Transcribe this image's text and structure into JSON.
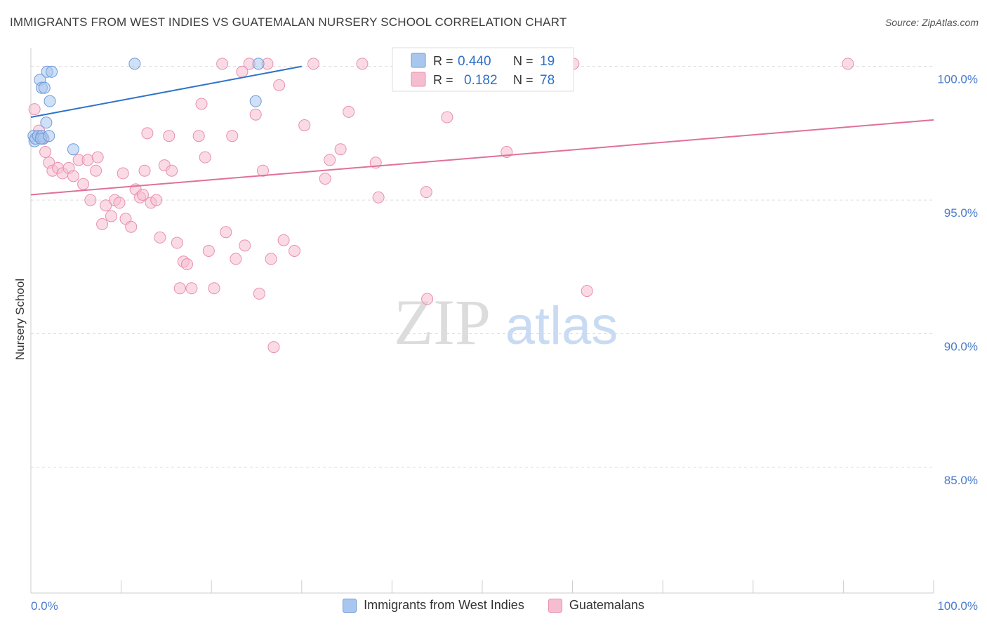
{
  "title": "IMMIGRANTS FROM WEST INDIES VS GUATEMALAN NURSERY SCHOOL CORRELATION CHART",
  "source": "Source: ZipAtlas.com",
  "watermark": {
    "zip": "ZIP",
    "atlas": "atlas"
  },
  "colors": {
    "blue_fill": "#a9c7ee",
    "blue_stroke": "#6d9bd8",
    "blue_line": "#2f73c8",
    "pink_fill": "#f6bdd0",
    "pink_stroke": "#e88fae",
    "pink_line": "#e0709b",
    "axis_text": "#4a7ccc",
    "grid": "#dddddd"
  },
  "chart_data": {
    "type": "scatter",
    "xlabel": "",
    "ylabel": "Nursery School",
    "xlim": [
      0,
      100
    ],
    "ylim": [
      80.3,
      100.7
    ],
    "x_tick_labels": {
      "min": "0.0%",
      "max": "100.0%"
    },
    "y_ticks": [
      {
        "value": 100,
        "label": "100.0%"
      },
      {
        "value": 95,
        "label": "95.0%"
      },
      {
        "value": 90,
        "label": "90.0%"
      },
      {
        "value": 85,
        "label": "85.0%"
      }
    ],
    "stats": [
      {
        "r_label": "R =",
        "r": "0.440",
        "n_label": "N =",
        "n": "19"
      },
      {
        "r_label": "R =",
        "r": "0.182",
        "n_label": "N =",
        "n": "78"
      }
    ],
    "series": [
      {
        "name": "Immigrants from West Indies",
        "color": "blue",
        "trend": {
          "x0": 0,
          "y0": 98.1,
          "x1": 30,
          "y1": 100
        },
        "points": [
          [
            0.3,
            97.4
          ],
          [
            0.4,
            97.2
          ],
          [
            0.5,
            97.3
          ],
          [
            0.8,
            97.4
          ],
          [
            1.2,
            97.4
          ],
          [
            1.4,
            97.3
          ],
          [
            1.0,
            99.5
          ],
          [
            1.2,
            99.2
          ],
          [
            1.5,
            99.2
          ],
          [
            1.8,
            99.8
          ],
          [
            2.3,
            99.8
          ],
          [
            2.1,
            98.7
          ],
          [
            1.7,
            97.9
          ],
          [
            4.7,
            96.9
          ],
          [
            11.5,
            100.1
          ],
          [
            25.2,
            100.1
          ],
          [
            24.9,
            98.7
          ],
          [
            1.1,
            97.3
          ],
          [
            2.0,
            97.4
          ]
        ]
      },
      {
        "name": "Guatemalans",
        "color": "pink",
        "trend": {
          "x0": 0,
          "y0": 95.2,
          "x1": 100,
          "y1": 98.0
        },
        "points": [
          [
            0.4,
            98.4
          ],
          [
            0.9,
            97.6
          ],
          [
            1.3,
            97.3
          ],
          [
            1.6,
            96.8
          ],
          [
            2.0,
            96.4
          ],
          [
            2.4,
            96.1
          ],
          [
            3.0,
            96.2
          ],
          [
            3.5,
            96.0
          ],
          [
            4.2,
            96.2
          ],
          [
            4.7,
            95.9
          ],
          [
            5.3,
            96.5
          ],
          [
            5.8,
            95.6
          ],
          [
            6.3,
            96.5
          ],
          [
            6.6,
            95.0
          ],
          [
            7.2,
            96.1
          ],
          [
            7.4,
            96.6
          ],
          [
            7.9,
            94.1
          ],
          [
            8.3,
            94.8
          ],
          [
            8.9,
            94.4
          ],
          [
            9.3,
            95.0
          ],
          [
            9.8,
            94.9
          ],
          [
            10.2,
            96.0
          ],
          [
            10.5,
            94.3
          ],
          [
            11.1,
            94.0
          ],
          [
            11.6,
            95.4
          ],
          [
            12.1,
            95.1
          ],
          [
            12.6,
            96.1
          ],
          [
            12.9,
            97.5
          ],
          [
            13.3,
            94.9
          ],
          [
            13.9,
            95.0
          ],
          [
            14.3,
            93.6
          ],
          [
            14.8,
            96.3
          ],
          [
            15.3,
            97.4
          ],
          [
            15.6,
            96.1
          ],
          [
            16.2,
            93.4
          ],
          [
            16.5,
            91.7
          ],
          [
            16.9,
            92.7
          ],
          [
            17.3,
            92.6
          ],
          [
            17.8,
            91.7
          ],
          [
            18.6,
            97.4
          ],
          [
            18.9,
            98.6
          ],
          [
            19.3,
            96.6
          ],
          [
            19.7,
            93.1
          ],
          [
            20.3,
            91.7
          ],
          [
            21.2,
            100.1
          ],
          [
            21.6,
            93.8
          ],
          [
            22.3,
            97.4
          ],
          [
            22.7,
            92.8
          ],
          [
            23.4,
            99.8
          ],
          [
            23.7,
            93.3
          ],
          [
            24.2,
            100.1
          ],
          [
            24.9,
            98.2
          ],
          [
            25.3,
            91.5
          ],
          [
            25.7,
            96.1
          ],
          [
            26.2,
            100.1
          ],
          [
            26.6,
            92.8
          ],
          [
            27.5,
            99.3
          ],
          [
            28.0,
            93.5
          ],
          [
            29.2,
            93.1
          ],
          [
            30.3,
            97.8
          ],
          [
            31.3,
            100.1
          ],
          [
            32.6,
            95.8
          ],
          [
            33.1,
            96.5
          ],
          [
            34.3,
            96.9
          ],
          [
            35.2,
            98.3
          ],
          [
            36.7,
            100.1
          ],
          [
            38.2,
            96.4
          ],
          [
            38.5,
            95.1
          ],
          [
            43.9,
            91.3
          ],
          [
            43.8,
            95.3
          ],
          [
            46.1,
            98.1
          ],
          [
            52.7,
            96.8
          ],
          [
            59.0,
            100.1
          ],
          [
            60.1,
            100.1
          ],
          [
            61.6,
            91.6
          ],
          [
            90.5,
            100.1
          ],
          [
            26.9,
            89.5
          ],
          [
            12.4,
            95.2
          ]
        ]
      }
    ]
  },
  "legend": [
    {
      "label": "Immigrants from West Indies",
      "color": "blue"
    },
    {
      "label": "Guatemalans",
      "color": "pink"
    }
  ]
}
